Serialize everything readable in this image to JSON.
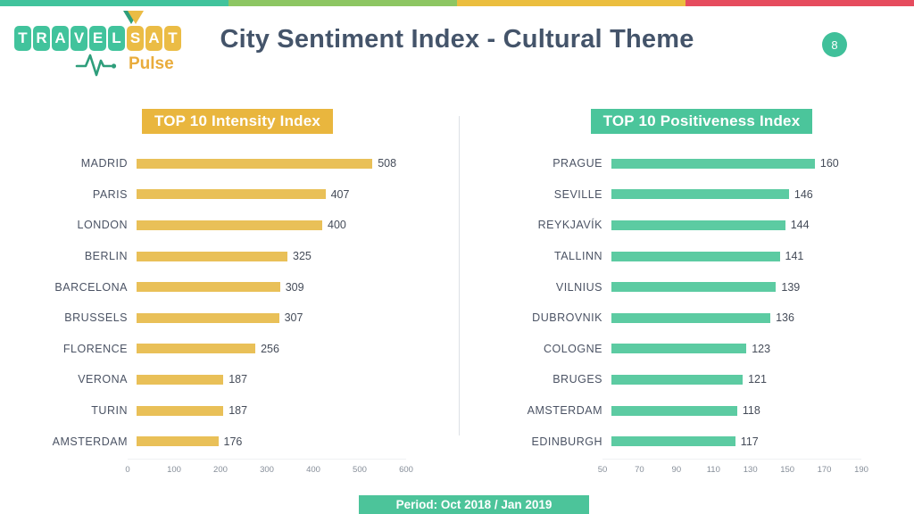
{
  "topbar": {
    "segment_colors": [
      "#41C39C",
      "#8DC663",
      "#EBBE3F",
      "#E64C5E"
    ]
  },
  "logo": {
    "word_primary": "TRAVEL",
    "word_secondary": "SAT",
    "subtitle": "Pulse",
    "tile_teal": "#41C39C",
    "tile_gold": "#EBBC45",
    "subtitle_color": "#E9AC3C",
    "pulse_color": "#2E9E7B"
  },
  "header": {
    "title": "City Sentiment Index - Cultural Theme",
    "title_color": "#44546A",
    "page_number": "8",
    "badge_color": "#40C09A"
  },
  "chart_data": [
    {
      "type": "bar",
      "orientation": "horizontal",
      "title": "TOP 10 Intensity Index",
      "banner_color": "#E9B63E",
      "bar_color": "#E9C058",
      "categories": [
        "MADRID",
        "PARIS",
        "LONDON",
        "BERLIN",
        "BARCELONA",
        "BRUSSELS",
        "FLORENCE",
        "VERONA",
        "TURIN",
        "AMSTERDAM"
      ],
      "values": [
        508,
        407,
        400,
        325,
        309,
        307,
        256,
        187,
        187,
        176
      ],
      "xlim": [
        0,
        600
      ],
      "ticks": [
        0,
        100,
        200,
        300,
        400,
        500,
        600
      ],
      "grid": false,
      "value_labels": true,
      "legend": null
    },
    {
      "type": "bar",
      "orientation": "horizontal",
      "title": "TOP 10 Positiveness Index",
      "banner_color": "#4BC59B",
      "bar_color": "#5CCBA2",
      "categories": [
        "PRAGUE",
        "SEVILLE",
        "REYKJAVÍK",
        "TALLINN",
        "VILNIUS",
        "DUBROVNIK",
        "COLOGNE",
        "BRUGES",
        "AMSTERDAM",
        "EDINBURGH"
      ],
      "values": [
        160,
        146,
        144,
        141,
        139,
        136,
        123,
        121,
        118,
        117
      ],
      "xlim": [
        50,
        190
      ],
      "ticks": [
        50,
        70,
        90,
        110,
        130,
        150,
        170,
        190
      ],
      "grid": false,
      "value_labels": true,
      "legend": null
    }
  ],
  "footer": {
    "period": "Period: Oct 2018 / Jan 2019",
    "banner_color": "#4CC49A"
  }
}
